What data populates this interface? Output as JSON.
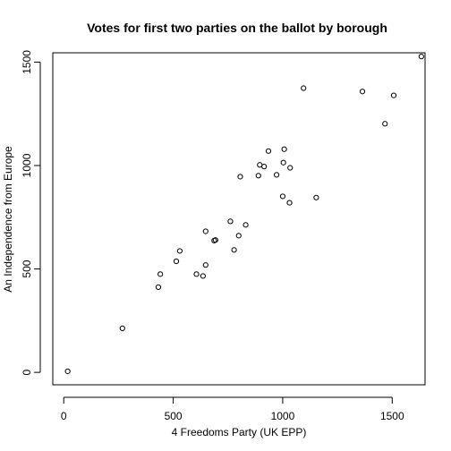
{
  "chart_data": {
    "type": "scatter",
    "title": "Votes for first two parties on the ballot by borough",
    "xlabel": "4 Freedoms Party (UK EPP)",
    "ylabel": "An Independence from Europe",
    "xlim": [
      -50,
      1650
    ],
    "ylim": [
      -60,
      1545
    ],
    "xticks": [
      0,
      500,
      1000,
      1500
    ],
    "yticks": [
      0,
      500,
      1000,
      1500
    ],
    "grid": false,
    "points": [
      {
        "x": 18,
        "y": 5
      },
      {
        "x": 268,
        "y": 213
      },
      {
        "x": 432,
        "y": 412
      },
      {
        "x": 441,
        "y": 475
      },
      {
        "x": 514,
        "y": 537
      },
      {
        "x": 530,
        "y": 587
      },
      {
        "x": 606,
        "y": 475
      },
      {
        "x": 636,
        "y": 466
      },
      {
        "x": 648,
        "y": 519
      },
      {
        "x": 648,
        "y": 682
      },
      {
        "x": 687,
        "y": 637
      },
      {
        "x": 693,
        "y": 640
      },
      {
        "x": 761,
        "y": 730
      },
      {
        "x": 778,
        "y": 592
      },
      {
        "x": 799,
        "y": 661
      },
      {
        "x": 806,
        "y": 946
      },
      {
        "x": 831,
        "y": 713
      },
      {
        "x": 889,
        "y": 951
      },
      {
        "x": 895,
        "y": 1003
      },
      {
        "x": 915,
        "y": 995
      },
      {
        "x": 935,
        "y": 1070
      },
      {
        "x": 972,
        "y": 955
      },
      {
        "x": 1000,
        "y": 851
      },
      {
        "x": 1003,
        "y": 1014
      },
      {
        "x": 1007,
        "y": 1079
      },
      {
        "x": 1031,
        "y": 820
      },
      {
        "x": 1034,
        "y": 989
      },
      {
        "x": 1095,
        "y": 1374
      },
      {
        "x": 1153,
        "y": 845
      },
      {
        "x": 1364,
        "y": 1358
      },
      {
        "x": 1467,
        "y": 1202
      },
      {
        "x": 1507,
        "y": 1339
      },
      {
        "x": 1633,
        "y": 1527
      }
    ]
  }
}
